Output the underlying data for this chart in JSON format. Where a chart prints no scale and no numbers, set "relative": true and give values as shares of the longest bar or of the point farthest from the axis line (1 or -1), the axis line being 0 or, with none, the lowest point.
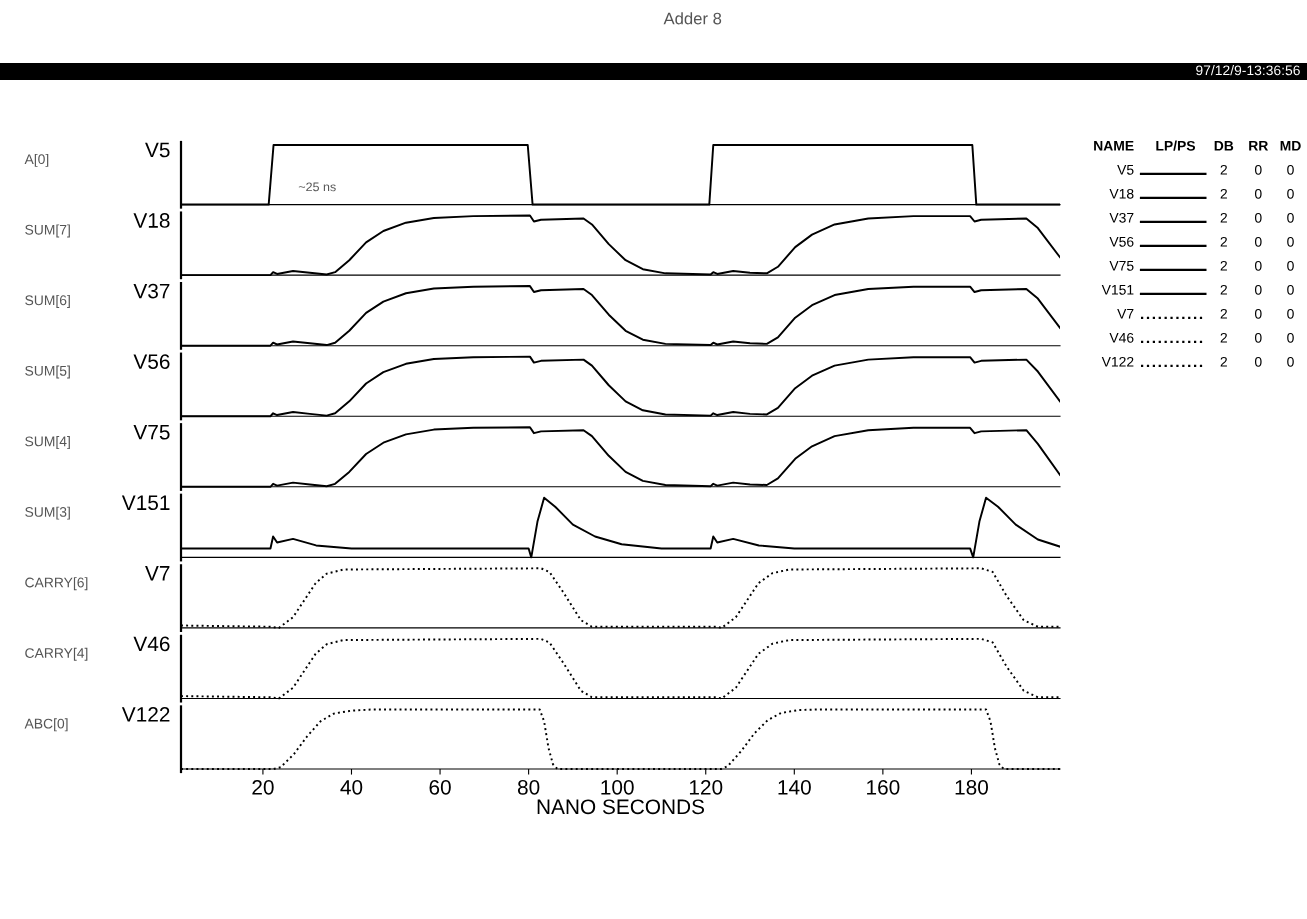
{
  "chart_data": [
    {
      "type": "line",
      "relative": true,
      "title": "Adder 8",
      "ylabel": "A[0]",
      "line_style": "solid",
      "xlim": [
        1.5,
        200
      ],
      "tick_labels": false,
      "annotations": [
        "97/12/9-13:36:56",
        "~25 ns"
      ],
      "series": [
        {
          "name": "V5",
          "color": "#000000",
          "x": [
            1.5,
            21.3,
            22.4,
            79.8,
            80.9,
            120.8,
            121.7,
            180.2,
            181.1,
            200
          ],
          "values": [
            0,
            0,
            1,
            1,
            0,
            0,
            1,
            1,
            0,
            0
          ]
        }
      ]
    },
    {
      "type": "line",
      "relative": true,
      "ylabel": "SUM[7]",
      "line_style": "solid",
      "xlim": [
        1.5,
        200
      ],
      "tick_labels": false,
      "series": [
        {
          "name": "V18",
          "color": "#000000",
          "x": [
            1.5,
            21.7,
            22.3,
            23.2,
            26.8,
            30.6,
            34.4,
            36.3,
            39.5,
            43.3,
            47.2,
            52.3,
            58.6,
            67.5,
            80.3,
            81.2,
            82.8,
            92.4,
            94.3,
            98.1,
            101.9,
            105.8,
            110.9,
            121.1,
            121.7,
            122.6,
            126.2,
            130.0,
            133.8,
            136.3,
            140.2,
            144.0,
            149.1,
            156.7,
            166.9,
            179.7,
            180.7,
            182.2,
            192.4,
            195.0,
            200
          ],
          "values": [
            0,
            0,
            0.05,
            0.02,
            0.07,
            0.04,
            0.01,
            0.05,
            0.25,
            0.55,
            0.74,
            0.88,
            0.96,
            0.99,
            1,
            0.9,
            0.93,
            0.95,
            0.85,
            0.52,
            0.25,
            0.1,
            0.03,
            0.01,
            0.05,
            0.02,
            0.07,
            0.04,
            0.03,
            0.14,
            0.47,
            0.68,
            0.85,
            0.95,
            0.99,
            0.99,
            0.9,
            0.93,
            0.95,
            0.79,
            0.3
          ]
        }
      ]
    },
    {
      "type": "line",
      "relative": true,
      "ylabel": "SUM[6]",
      "line_style": "solid",
      "xlim": [
        1.5,
        200
      ],
      "tick_labels": false,
      "series": [
        {
          "name": "V37",
          "color": "#000000",
          "x": [
            1.5,
            21.7,
            22.3,
            23.2,
            26.8,
            30.6,
            34.4,
            36.3,
            39.5,
            43.3,
            47.2,
            52.3,
            58.6,
            67.5,
            80.3,
            81.2,
            82.8,
            92.4,
            94.3,
            98.1,
            101.9,
            105.8,
            110.9,
            121.1,
            121.7,
            122.6,
            126.2,
            130.0,
            133.8,
            136.3,
            140.2,
            144.0,
            149.1,
            156.7,
            166.9,
            179.7,
            180.7,
            182.2,
            192.4,
            195.0,
            200
          ],
          "values": [
            0,
            0,
            0.05,
            0.02,
            0.07,
            0.04,
            0.01,
            0.05,
            0.25,
            0.55,
            0.74,
            0.88,
            0.96,
            0.99,
            1,
            0.9,
            0.93,
            0.95,
            0.85,
            0.52,
            0.25,
            0.1,
            0.03,
            0.01,
            0.05,
            0.02,
            0.07,
            0.04,
            0.03,
            0.14,
            0.47,
            0.68,
            0.85,
            0.95,
            0.99,
            0.99,
            0.9,
            0.93,
            0.95,
            0.79,
            0.3
          ]
        }
      ]
    },
    {
      "type": "line",
      "relative": true,
      "ylabel": "SUM[5]",
      "line_style": "solid",
      "xlim": [
        1.5,
        200
      ],
      "tick_labels": false,
      "series": [
        {
          "name": "V56",
          "color": "#000000",
          "x": [
            1.5,
            21.7,
            22.3,
            23.2,
            26.8,
            30.6,
            34.4,
            36.3,
            39.5,
            43.3,
            47.2,
            52.3,
            58.6,
            67.5,
            80.3,
            81.2,
            82.8,
            92.4,
            94.3,
            98.1,
            101.9,
            105.8,
            110.9,
            121.1,
            121.7,
            122.6,
            126.2,
            130.0,
            133.8,
            136.3,
            140.2,
            144.0,
            149.1,
            156.7,
            166.9,
            179.7,
            180.7,
            182.2,
            192.4,
            195.0,
            200
          ],
          "values": [
            0,
            0,
            0.05,
            0.02,
            0.07,
            0.04,
            0.01,
            0.05,
            0.25,
            0.55,
            0.74,
            0.88,
            0.96,
            0.99,
            1,
            0.9,
            0.93,
            0.95,
            0.85,
            0.52,
            0.25,
            0.1,
            0.03,
            0.01,
            0.05,
            0.02,
            0.07,
            0.04,
            0.03,
            0.14,
            0.47,
            0.68,
            0.85,
            0.95,
            0.99,
            0.99,
            0.9,
            0.93,
            0.95,
            0.75,
            0.25
          ]
        }
      ]
    },
    {
      "type": "line",
      "relative": true,
      "ylabel": "SUM[4]",
      "line_style": "solid",
      "xlim": [
        1.5,
        200
      ],
      "tick_labels": false,
      "series": [
        {
          "name": "V75",
          "color": "#000000",
          "x": [
            1.5,
            21.7,
            22.3,
            23.2,
            26.8,
            30.6,
            34.4,
            36.3,
            39.5,
            43.3,
            47.2,
            52.3,
            58.6,
            67.5,
            80.3,
            81.2,
            82.8,
            92.4,
            94.3,
            98.1,
            101.9,
            105.8,
            110.9,
            121.1,
            121.7,
            122.6,
            126.2,
            130.0,
            133.8,
            136.3,
            140.2,
            144.0,
            149.1,
            156.7,
            166.9,
            179.7,
            180.7,
            182.2,
            192.4,
            195.0,
            200
          ],
          "values": [
            0,
            0,
            0.05,
            0.02,
            0.07,
            0.04,
            0.01,
            0.05,
            0.25,
            0.55,
            0.74,
            0.88,
            0.96,
            0.99,
            1,
            0.9,
            0.93,
            0.95,
            0.85,
            0.52,
            0.25,
            0.1,
            0.03,
            0.01,
            0.05,
            0.02,
            0.07,
            0.04,
            0.03,
            0.14,
            0.47,
            0.68,
            0.85,
            0.95,
            0.99,
            0.99,
            0.9,
            0.93,
            0.95,
            0.72,
            0.2
          ]
        }
      ]
    },
    {
      "type": "line",
      "relative": true,
      "ylabel": "SUM[3]",
      "line_style": "solid",
      "xlim": [
        1.5,
        200
      ],
      "tick_labels": false,
      "series": [
        {
          "name": "V151",
          "color": "#000000",
          "x": [
            1.5,
            21.7,
            22.3,
            23.2,
            26.8,
            32,
            40,
            80,
            80.6,
            82,
            83.5,
            86,
            90,
            95,
            101,
            110,
            121.1,
            121.7,
            122.6,
            126.2,
            132,
            140,
            179.7,
            180.4,
            181.8,
            183.3,
            186,
            190,
            195,
            200
          ],
          "values": [
            0.15,
            0.15,
            0.35,
            0.25,
            0.31,
            0.2,
            0.15,
            0.15,
            0,
            0.6,
            1,
            0.85,
            0.55,
            0.35,
            0.22,
            0.15,
            0.15,
            0.35,
            0.25,
            0.31,
            0.2,
            0.15,
            0.15,
            0,
            0.6,
            1,
            0.85,
            0.55,
            0.3,
            0.18
          ]
        }
      ]
    },
    {
      "type": "line",
      "relative": true,
      "ylabel": "CARRY[6]",
      "line_style": "dotted",
      "xlim": [
        1.5,
        200
      ],
      "tick_labels": false,
      "series": [
        {
          "name": "V7",
          "color": "#000000",
          "x": [
            1.5,
            21.7,
            23.6,
            26.8,
            31.9,
            34.4,
            38.2,
            82.8,
            84.7,
            87.9,
            91.8,
            94.3,
            122.3,
            123.6,
            126.8,
            131.9,
            135.1,
            138.9,
            182.2,
            184.8,
            187.9,
            191.8,
            195.0,
            200
          ],
          "values": [
            0.04,
            0.02,
            0,
            0.18,
            0.75,
            0.91,
            0.98,
            1,
            0.94,
            0.59,
            0.13,
            0.02,
            0.02,
            0,
            0.18,
            0.75,
            0.92,
            0.98,
            1,
            0.94,
            0.54,
            0.13,
            0.02,
            0.02
          ]
        }
      ]
    },
    {
      "type": "line",
      "relative": true,
      "ylabel": "CARRY[4]",
      "line_style": "dotted",
      "xlim": [
        1.5,
        200
      ],
      "tick_labels": false,
      "series": [
        {
          "name": "V46",
          "color": "#000000",
          "x": [
            1.5,
            21.7,
            23.6,
            26.8,
            31.9,
            34.4,
            38.2,
            82.8,
            84.7,
            87.9,
            91.8,
            94.3,
            122.3,
            123.6,
            126.8,
            131.9,
            135.1,
            138.9,
            182.2,
            184.8,
            187.9,
            191.8,
            195.0,
            200
          ],
          "values": [
            0.04,
            0.02,
            0,
            0.18,
            0.75,
            0.91,
            0.98,
            1,
            0.94,
            0.59,
            0.13,
            0.02,
            0.02,
            0,
            0.18,
            0.75,
            0.92,
            0.98,
            1,
            0.94,
            0.54,
            0.13,
            0.02,
            0.02
          ]
        }
      ]
    },
    {
      "type": "line",
      "relative": true,
      "ylabel": "ABC[0]",
      "xlabel": "NANO SECONDS",
      "line_style": "dotted",
      "xlim": [
        1.5,
        200
      ],
      "xticks": [
        20,
        40,
        60,
        80,
        100,
        120,
        140,
        160,
        180
      ],
      "tick_labels": "x",
      "series": [
        {
          "name": "V122",
          "color": "#000000",
          "x": [
            1.5,
            22.4,
            24,
            27,
            30,
            33,
            36,
            40,
            45,
            82.5,
            83.5,
            84.5,
            85.5,
            86.5,
            123.5,
            125,
            128,
            131,
            134,
            137,
            141,
            146,
            183.3,
            184.3,
            185.3,
            186.3,
            187.3,
            200
          ],
          "values": [
            0,
            0,
            0.03,
            0.25,
            0.55,
            0.8,
            0.93,
            0.98,
            1,
            1,
            0.8,
            0.35,
            0.08,
            0,
            0,
            0.05,
            0.3,
            0.6,
            0.82,
            0.94,
            0.99,
            1,
            1,
            0.8,
            0.35,
            0.08,
            0,
            0
          ]
        }
      ]
    },
    {
      "type": "other",
      "annotations": [
        "NAME",
        "LP/PS",
        "DB",
        "RR",
        "MD",
        "2",
        "0",
        "0",
        "2",
        "0",
        "0",
        "2",
        "0",
        "0",
        "2",
        "0",
        "0",
        "2",
        "0",
        "0",
        "2",
        "0",
        "0",
        "2",
        "0",
        "0",
        "2",
        "0",
        "0",
        "2",
        "0",
        "0"
      ]
    }
  ]
}
